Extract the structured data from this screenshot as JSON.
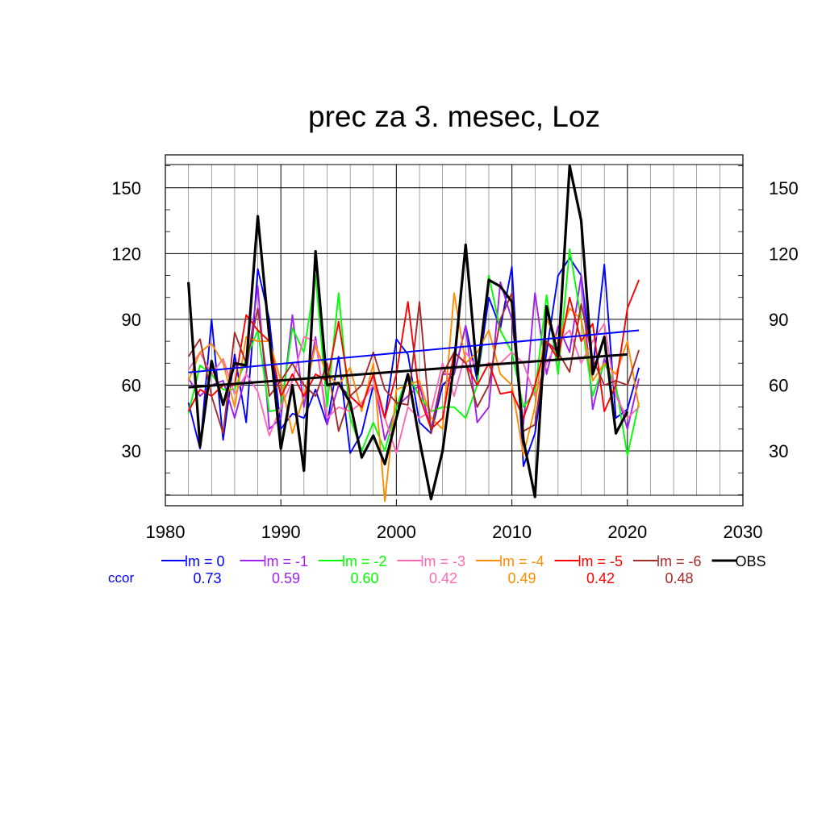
{
  "chart_data": {
    "type": "line",
    "title": "prec za 3. mesec, Loz",
    "xlim": [
      1980,
      2030
    ],
    "ylim": [
      5,
      165
    ],
    "x_ticks": [
      1980,
      1990,
      2000,
      2010,
      2020,
      2030
    ],
    "y_ticks": [
      30,
      60,
      90,
      120,
      150
    ],
    "grid": true,
    "legend_position": "bottom",
    "ccor_label": "ccor",
    "x": [
      1982,
      1983,
      1984,
      1985,
      1986,
      1987,
      1988,
      1989,
      1990,
      1991,
      1992,
      1993,
      1994,
      1995,
      1996,
      1997,
      1998,
      1999,
      2000,
      2001,
      2002,
      2003,
      2004,
      2005,
      2006,
      2007,
      2008,
      2009,
      2010,
      2011,
      2012,
      2013,
      2014,
      2015,
      2016,
      2017,
      2018,
      2019,
      2020,
      2021
    ],
    "series": [
      {
        "name": "lm = 0",
        "color": "#0000ff",
        "ccor": "0.73",
        "values": [
          52,
          31,
          90,
          35,
          74,
          43,
          113,
          90,
          40,
          47,
          45,
          58,
          42,
          73,
          29,
          38,
          60,
          45,
          81,
          74,
          43,
          38,
          60,
          65,
          87,
          62,
          100,
          86,
          114,
          23,
          38,
          75,
          110,
          118,
          110,
          67,
          115,
          45,
          49,
          68
        ],
        "trend": [
          65.8,
          85.0
        ]
      },
      {
        "name": "lm = -1",
        "color": "#a020f0",
        "ccor": "0.59",
        "values": [
          63,
          55,
          60,
          62,
          45,
          65,
          105,
          40,
          45,
          92,
          50,
          82,
          42,
          60,
          55,
          50,
          65,
          35,
          50,
          55,
          60,
          40,
          65,
          65,
          87,
          43,
          50,
          107,
          90,
          42,
          102,
          65,
          87,
          75,
          110,
          49,
          72,
          58,
          40,
          63
        ]
      },
      {
        "name": "lm = -2",
        "color": "#00ff00",
        "ccor": "0.60",
        "values": [
          47,
          69,
          65,
          58,
          58,
          72,
          85,
          48,
          49,
          86,
          75,
          110,
          50,
          102,
          45,
          30,
          43,
          30,
          50,
          65,
          55,
          48,
          50,
          50,
          45,
          60,
          110,
          85,
          75,
          50,
          57,
          101,
          65,
          122,
          90,
          55,
          70,
          60,
          28,
          52
        ]
      },
      {
        "name": "lm = -3",
        "color": "#ff69b4",
        "ccor": "0.42",
        "values": [
          67,
          75,
          65,
          72,
          56,
          65,
          57,
          37,
          50,
          62,
          82,
          80,
          45,
          50,
          48,
          52,
          60,
          45,
          29,
          50,
          45,
          48,
          70,
          55,
          75,
          68,
          70,
          70,
          75,
          70,
          55,
          70,
          80,
          85,
          70,
          80,
          88,
          55,
          45,
          50
        ]
      },
      {
        "name": "lm = -4",
        "color": "#ff8c00",
        "ccor": "0.49",
        "values": [
          62,
          75,
          79,
          70,
          50,
          82,
          80,
          80,
          62,
          38,
          55,
          78,
          65,
          60,
          68,
          48,
          70,
          7,
          58,
          60,
          62,
          45,
          40,
          102,
          70,
          75,
          85,
          65,
          60,
          28,
          50,
          90,
          80,
          95,
          90,
          62,
          70,
          65,
          80,
          50
        ]
      },
      {
        "name": "lm = -5",
        "color": "#ff0000",
        "ccor": "0.42",
        "values": [
          48,
          58,
          55,
          60,
          60,
          92,
          85,
          80,
          55,
          65,
          55,
          65,
          62,
          89,
          55,
          50,
          65,
          45,
          65,
          98,
          55,
          40,
          45,
          75,
          70,
          60,
          70,
          56,
          57,
          45,
          60,
          80,
          72,
          100,
          80,
          88,
          48,
          60,
          95,
          108
        ]
      },
      {
        "name": "lm = -6",
        "color": "#a52a2a",
        "ccor": "0.48",
        "values": [
          73,
          81,
          55,
          38,
          84,
          70,
          95,
          55,
          62,
          70,
          60,
          55,
          70,
          39,
          55,
          60,
          75,
          58,
          52,
          51,
          98,
          38,
          65,
          75,
          70,
          50,
          60,
          90,
          102,
          39,
          42,
          80,
          75,
          66,
          97,
          72,
          60,
          62,
          60,
          76
        ]
      },
      {
        "name": "OBS",
        "color": "#000000",
        "ccor": "",
        "values": [
          107,
          32,
          71,
          51,
          70,
          69,
          137,
          82,
          31,
          60,
          21,
          121,
          60,
          61,
          52,
          27,
          37,
          24,
          45,
          65,
          35,
          8,
          30,
          70,
          124,
          65,
          108,
          105,
          98,
          35,
          9,
          96,
          73,
          160,
          135,
          65,
          82,
          38,
          48,
          null
        ],
        "trend": [
          59.0,
          74.0
        ]
      }
    ]
  }
}
